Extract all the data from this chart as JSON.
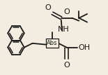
{
  "background_color": "#f2ede0",
  "line_color": "#1a1a1a",
  "line_width": 1.3,
  "font_size": 7,
  "stereo_label": "Abs",
  "oh_label": "OH",
  "nh_label": "NH",
  "o_label": "O"
}
